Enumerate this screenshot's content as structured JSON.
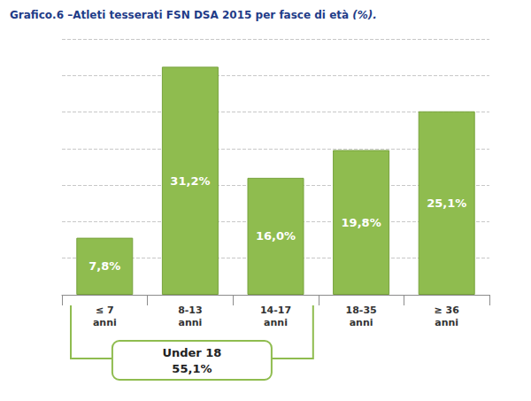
{
  "chart_data": {
    "type": "bar",
    "title": "Grafico.6 –Atleti tesserati FSN DSA 2015 per fasce di età (%).",
    "categories": [
      "≤ 7\nanni",
      "8-13\nanni",
      "14-17\nanni",
      "18-35\nanni",
      "≥ 36\nanni"
    ],
    "values": [
      7.8,
      31.2,
      16.0,
      19.8,
      25.1
    ],
    "value_labels": [
      "7,8%",
      "31,2%",
      "16,0%",
      "19,8%",
      "25,1%"
    ],
    "color": "#8fbc4f",
    "ylim": [
      0,
      35
    ],
    "yticks": [
      0,
      5,
      10,
      15,
      20,
      25,
      30,
      35
    ],
    "grid": true,
    "data_labels": true,
    "tick_labels": "x",
    "annotations": [
      {
        "text": "Under 18",
        "value": 55.1,
        "value_label": "55,1%",
        "from": "≤ 7\nanni",
        "to": "14-17\nanni"
      }
    ]
  }
}
